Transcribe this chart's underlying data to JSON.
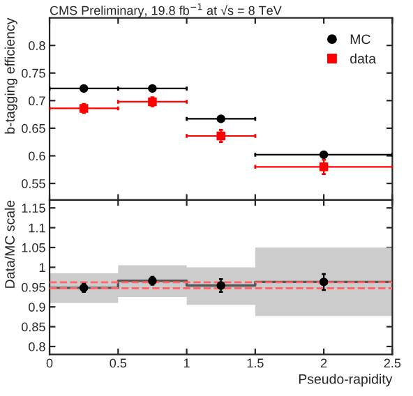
{
  "chart_data": [
    {
      "type": "scatter",
      "title": "CMS Preliminary, 19.8 fb$^{−1}$ at √s = 8 TeV",
      "ylabel": "b-tagging efficiency",
      "xlim": [
        0,
        2.5
      ],
      "xticks": [
        0,
        0.5,
        1,
        1.5,
        2,
        2.5
      ],
      "ylim": [
        0.52,
        0.85
      ],
      "yticks": [
        0.55,
        0.6,
        0.65,
        0.7,
        0.75,
        0.8
      ],
      "tick_labels": "y",
      "legend": "top right",
      "grid": false,
      "series": [
        {
          "name": "MC",
          "color": "#000000",
          "marker": "circle",
          "x": [
            0.25,
            0.75,
            1.25,
            2.0
          ],
          "values": [
            0.722,
            0.722,
            0.667,
            0.602
          ],
          "xerrors": [
            0.25,
            0.25,
            0.25,
            0.5
          ]
        },
        {
          "name": "data",
          "color": "#ff0000",
          "marker": "square",
          "x": [
            0.25,
            0.75,
            1.25,
            2.0
          ],
          "values": [
            0.686,
            0.698,
            0.636,
            0.58
          ],
          "errors": [
            0.008,
            0.008,
            0.011,
            0.013
          ],
          "xerrors": [
            0.25,
            0.25,
            0.25,
            0.5
          ]
        }
      ]
    },
    {
      "type": "scatter",
      "xlabel": "Pseudo-rapidity",
      "ylabel": "Data/MC scale",
      "xlim": [
        0,
        2.5
      ],
      "xticks": [
        0,
        0.5,
        1,
        1.5,
        2,
        2.5
      ],
      "ylim": [
        0.78,
        1.17
      ],
      "yticks": [
        0.8,
        0.85,
        0.9,
        0.95,
        1,
        1.05,
        1.1,
        1.15
      ],
      "grid": false,
      "ref_lines": [
        {
          "axis": "y",
          "value": 0.962,
          "color": "#ff6666",
          "line_style": "dashed"
        },
        {
          "axis": "y",
          "value": 0.947,
          "color": "#ff6666",
          "line_style": "dashed"
        }
      ],
      "series": [
        {
          "type": "step",
          "color": "#555555",
          "x": [
            0,
            0.5,
            1,
            1.5,
            2.5
          ],
          "values": [
            0.948,
            0.966,
            0.954,
            0.963,
            0.963
          ],
          "lower": [
            0.91,
            0.925,
            0.905,
            0.877,
            0.877
          ],
          "upper": [
            0.985,
            1.005,
            1.0,
            1.05,
            1.05
          ]
        },
        {
          "color": "#000000",
          "marker": "circle",
          "x": [
            0.25,
            0.75,
            1.25,
            2.0
          ],
          "values": [
            0.948,
            0.966,
            0.954,
            0.963
          ],
          "errors": [
            0.01,
            0.01,
            0.016,
            0.02
          ]
        }
      ]
    }
  ]
}
